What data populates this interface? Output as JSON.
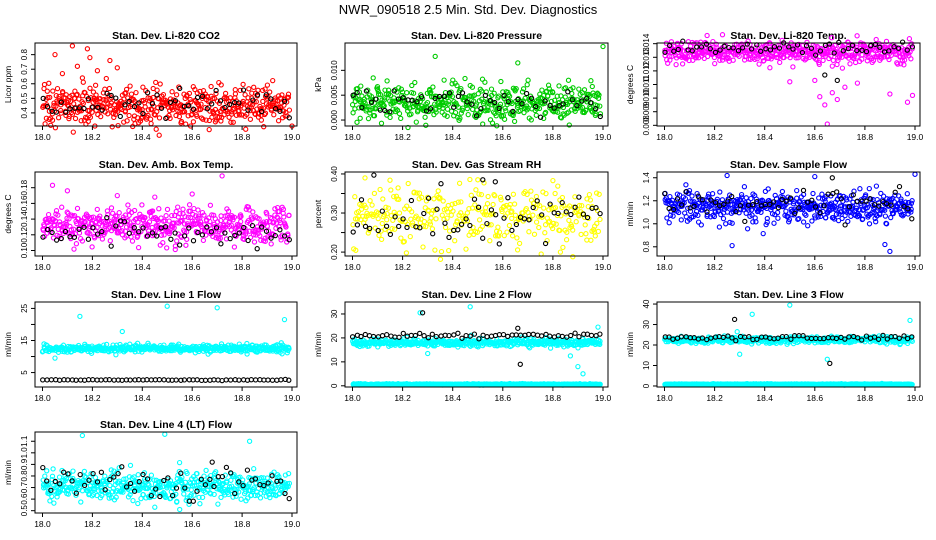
{
  "page_title": "NWR_090518  2.5 Min. Std. Dev. Diagnostics",
  "chart_data": [
    {
      "type": "scatter",
      "title": "Stan. Dev. Li-820 CO2",
      "ylabel": "Licor ppm",
      "xlim": [
        17.97,
        19.02
      ],
      "ylim": [
        0.31,
        0.88
      ],
      "xticks": [
        18.0,
        18.2,
        18.4,
        18.6,
        18.8,
        19.0
      ],
      "xtick_labels": [
        "18.0",
        "18.2",
        "18.4",
        "18.6",
        "18.8",
        "19.0"
      ],
      "yticks": [
        0.4,
        0.5,
        0.6,
        0.7,
        0.8
      ],
      "ytick_labels": [
        "0.4",
        "0.5",
        "0.6",
        "0.7",
        "0.8"
      ],
      "series": [
        {
          "color": "#ff0000",
          "n": 480,
          "center": 0.45,
          "spread": 0.07,
          "outliers": [
            [
              18.05,
              0.8
            ],
            [
              18.12,
              0.86
            ],
            [
              18.14,
              0.72
            ],
            [
              18.18,
              0.84
            ],
            [
              18.19,
              0.78
            ],
            [
              18.22,
              0.69
            ],
            [
              18.27,
              0.76
            ],
            [
              18.08,
              0.67
            ],
            [
              18.16,
              0.64
            ],
            [
              18.3,
              0.71
            ],
            [
              18.21,
              0.31
            ],
            [
              19.0,
              0.31
            ]
          ]
        },
        {
          "color": "#000000",
          "n": 55,
          "center": 0.46,
          "spread": 0.05,
          "outliers": []
        }
      ]
    },
    {
      "type": "scatter",
      "title": "Stan. Dev. Li-820 Pressure",
      "ylabel": "kPa",
      "xlim": [
        17.97,
        19.02
      ],
      "ylim": [
        -0.0012,
        0.0155
      ],
      "xticks": [
        18.0,
        18.2,
        18.4,
        18.6,
        18.8,
        19.0
      ],
      "xtick_labels": [
        "18.0",
        "18.2",
        "18.4",
        "18.6",
        "18.8",
        "19.0"
      ],
      "yticks": [
        0.0,
        0.005,
        0.01
      ],
      "ytick_labels": [
        "0.000",
        "0.005",
        "0.010"
      ],
      "series": [
        {
          "color": "#00cc00",
          "n": 480,
          "center": 0.0035,
          "spread": 0.0018,
          "outliers": [
            [
              18.33,
              0.0128
            ],
            [
              18.66,
              0.0115
            ],
            [
              19.0,
              0.0148
            ]
          ]
        },
        {
          "color": "#000000",
          "n": 55,
          "center": 0.0033,
          "spread": 0.0015,
          "outliers": []
        }
      ]
    },
    {
      "type": "scatter",
      "title": "Stan. Dev. Li-820 Temp.",
      "ylabel": "degrees C",
      "xlim": [
        17.97,
        19.02
      ],
      "ylim": [
        0.00795,
        0.01405
      ],
      "xticks": [
        18.0,
        18.2,
        18.4,
        18.6,
        18.8,
        19.0
      ],
      "xtick_labels": [
        "18.0",
        "18.2",
        "18.4",
        "18.6",
        "18.8",
        "19.0"
      ],
      "yticks": [
        0.008,
        0.009,
        0.01,
        0.011,
        0.012,
        0.013,
        0.014
      ],
      "ytick_labels": [
        "0.008",
        "0.009",
        "0.010",
        "0.011",
        "0.012",
        "0.013",
        "0.014"
      ],
      "series": [
        {
          "color": "#ff00ff",
          "n": 480,
          "center": 0.0134,
          "spread": 0.0004,
          "outliers": [
            [
              18.62,
              0.0101
            ],
            [
              18.64,
              0.0095
            ],
            [
              18.67,
              0.0104
            ],
            [
              18.69,
              0.0099
            ],
            [
              18.72,
              0.0108
            ],
            [
              18.9,
              0.0103
            ],
            [
              18.97,
              0.0097
            ],
            [
              18.99,
              0.0102
            ],
            [
              18.5,
              0.0112
            ],
            [
              18.77,
              0.0111
            ],
            [
              18.65,
              0.0081
            ],
            [
              18.6,
              0.0113
            ]
          ]
        },
        {
          "color": "#000000",
          "n": 55,
          "center": 0.0137,
          "spread": 0.0002,
          "outliers": [
            [
              18.64,
              0.0117
            ],
            [
              18.69,
              0.0113
            ]
          ]
        }
      ]
    },
    {
      "type": "scatter",
      "title": "Stan. Dev. Amb. Box Temp.",
      "ylabel": "degrees C",
      "xlim": [
        17.97,
        19.02
      ],
      "ylim": [
        0.093,
        0.2
      ],
      "xticks": [
        18.0,
        18.2,
        18.4,
        18.6,
        18.8,
        19.0
      ],
      "xtick_labels": [
        "18.0",
        "18.2",
        "18.4",
        "18.6",
        "18.8",
        "19.0"
      ],
      "yticks": [
        0.1,
        0.12,
        0.14,
        0.16,
        0.18
      ],
      "ytick_labels": [
        "0.10",
        "0.12",
        "0.14",
        "0.16",
        "0.18"
      ],
      "series": [
        {
          "color": "#ff00ff",
          "n": 480,
          "center": 0.132,
          "spread": 0.012,
          "outliers": [
            [
              18.04,
              0.183
            ],
            [
              18.1,
              0.176
            ],
            [
              18.3,
              0.17
            ],
            [
              18.72,
              0.195
            ],
            [
              18.45,
              0.168
            ],
            [
              18.6,
              0.172
            ]
          ]
        },
        {
          "color": "#000000",
          "n": 55,
          "center": 0.123,
          "spread": 0.008,
          "outliers": []
        }
      ]
    },
    {
      "type": "scatter",
      "title": "Stan. Dev. Gas Stream RH",
      "ylabel": "percent",
      "xlim": [
        17.97,
        19.02
      ],
      "ylim": [
        0.19,
        0.405
      ],
      "xticks": [
        18.0,
        18.2,
        18.4,
        18.6,
        18.8,
        19.0
      ],
      "xtick_labels": [
        "18.0",
        "18.2",
        "18.4",
        "18.6",
        "18.8",
        "19.0"
      ],
      "yticks": [
        0.2,
        0.25,
        0.3,
        0.35,
        0.4
      ],
      "ytick_labels": [
        "0.20",
        "",
        "0.30",
        "",
        "0.40"
      ],
      "series": [
        {
          "color": "#ffff00",
          "n": 330,
          "center": 0.292,
          "spread": 0.035,
          "outliers": [
            [
              18.05,
              0.39
            ],
            [
              18.5,
              0.385
            ],
            [
              18.8,
              0.383
            ],
            [
              18.83,
              0.2
            ]
          ]
        },
        {
          "color": "#000000",
          "n": 60,
          "center": 0.285,
          "spread": 0.035,
          "outliers": [
            [
              18.52,
              0.385
            ],
            [
              18.57,
              0.38
            ]
          ]
        }
      ]
    },
    {
      "type": "scatter",
      "title": "Stan. Dev. Sample Flow",
      "ylabel": "ml/min",
      "xlim": [
        17.97,
        19.02
      ],
      "ylim": [
        0.72,
        1.45
      ],
      "xticks": [
        18.0,
        18.2,
        18.4,
        18.6,
        18.8,
        19.0
      ],
      "xtick_labels": [
        "18.0",
        "18.2",
        "18.4",
        "18.6",
        "18.8",
        "19.0"
      ],
      "yticks": [
        0.8,
        1.0,
        1.2,
        1.4
      ],
      "ytick_labels": [
        "0.8",
        "1.0",
        "1.2",
        "1.4"
      ],
      "series": [
        {
          "color": "#0000ff",
          "n": 480,
          "center": 1.15,
          "spread": 0.07,
          "outliers": [
            [
              18.27,
              0.81
            ],
            [
              18.88,
              0.82
            ],
            [
              18.9,
              0.76
            ],
            [
              19.0,
              1.43
            ],
            [
              18.25,
              1.42
            ],
            [
              18.6,
              1.41
            ]
          ]
        },
        {
          "color": "#000000",
          "n": 60,
          "center": 1.16,
          "spread": 0.06,
          "outliers": [
            [
              18.67,
              1.4
            ]
          ]
        }
      ]
    },
    {
      "type": "scatter",
      "title": "Stan. Dev. Line 1 Flow",
      "ylabel": "ml/min",
      "xlim": [
        17.97,
        19.02
      ],
      "ylim": [
        0.5,
        27
      ],
      "xticks": [
        18.0,
        18.2,
        18.4,
        18.6,
        18.8,
        19.0
      ],
      "xtick_labels": [
        "18.0",
        "18.2",
        "18.4",
        "18.6",
        "18.8",
        "19.0"
      ],
      "yticks": [
        5,
        10,
        15,
        20,
        25
      ],
      "ytick_labels": [
        "5",
        "",
        "15",
        "",
        "25"
      ],
      "series": [
        {
          "color": "#00ffff",
          "n": 480,
          "center": 12.5,
          "spread": 0.6,
          "outliers": [
            [
              18.15,
              22.5
            ],
            [
              18.5,
              25.7
            ],
            [
              18.7,
              25.2
            ],
            [
              18.97,
              21.5
            ],
            [
              18.32,
              17.8
            ],
            [
              18.05,
              9.5
            ],
            [
              18.82,
              10.8
            ]
          ]
        },
        {
          "color": "#000000",
          "n": 60,
          "center": 2.7,
          "spread": 0.08,
          "outliers": []
        }
      ]
    },
    {
      "type": "scatter",
      "title": "Stan. Dev. Line 2 Flow",
      "ylabel": "ml/min",
      "xlim": [
        17.97,
        19.02
      ],
      "ylim": [
        -0.5,
        35
      ],
      "xticks": [
        18.0,
        18.2,
        18.4,
        18.6,
        18.8,
        19.0
      ],
      "xtick_labels": [
        "18.0",
        "18.2",
        "18.4",
        "18.6",
        "18.8",
        "19.0"
      ],
      "yticks": [
        0,
        10,
        20,
        30
      ],
      "ytick_labels": [
        "0",
        "10",
        "20",
        "30"
      ],
      "series": [
        {
          "color": "#00ffff",
          "n": 480,
          "center": 18.0,
          "spread": 0.8,
          "outliers": [
            [
              18.3,
              13.5
            ],
            [
              18.87,
              12.5
            ],
            [
              18.9,
              8.0
            ],
            [
              18.92,
              5.0
            ],
            [
              18.98,
              24.5
            ],
            [
              18.47,
              33.0
            ],
            [
              18.27,
              30.5
            ]
          ]
        },
        {
          "color": "#00ffff",
          "n": 480,
          "center": 0.6,
          "spread": 0.12,
          "outliers": []
        },
        {
          "color": "#000000",
          "n": 60,
          "center": 21.0,
          "spread": 0.5,
          "outliers": [
            [
              18.28,
              30.5
            ],
            [
              18.66,
              24.0
            ],
            [
              18.67,
              9.0
            ]
          ]
        }
      ]
    },
    {
      "type": "scatter",
      "title": "Stan. Dev. Line 3 Flow",
      "ylabel": "ml/min",
      "xlim": [
        17.97,
        19.02
      ],
      "ylim": [
        -0.5,
        41
      ],
      "xticks": [
        18.0,
        18.2,
        18.4,
        18.6,
        18.8,
        19.0
      ],
      "xtick_labels": [
        "18.0",
        "18.2",
        "18.4",
        "18.6",
        "18.8",
        "19.0"
      ],
      "yticks": [
        0,
        10,
        20,
        30,
        40
      ],
      "ytick_labels": [
        "0",
        "10",
        "20",
        "30",
        "40"
      ],
      "series": [
        {
          "color": "#00ffff",
          "n": 480,
          "center": 22.5,
          "spread": 0.8,
          "outliers": [
            [
              18.29,
              26.5
            ],
            [
              18.3,
              15.5
            ],
            [
              18.98,
              32.0
            ],
            [
              18.5,
              39.5
            ],
            [
              18.35,
              35.0
            ],
            [
              18.65,
              13.0
            ]
          ]
        },
        {
          "color": "#00ffff",
          "n": 480,
          "center": 0.8,
          "spread": 0.12,
          "outliers": []
        },
        {
          "color": "#000000",
          "n": 60,
          "center": 23.5,
          "spread": 0.6,
          "outliers": [
            [
              18.28,
              32.5
            ],
            [
              18.66,
              11.0
            ]
          ]
        }
      ]
    },
    {
      "type": "scatter",
      "title": "Stan. Dev. Line 4 (LT) Flow",
      "ylabel": "ml/min",
      "xlim": [
        17.97,
        19.02
      ],
      "ylim": [
        0.48,
        1.18
      ],
      "xticks": [
        18.0,
        18.2,
        18.4,
        18.6,
        18.8,
        19.0
      ],
      "xtick_labels": [
        "18.0",
        "18.2",
        "18.4",
        "18.6",
        "18.8",
        "19.0"
      ],
      "yticks": [
        0.5,
        0.6,
        0.7,
        0.8,
        0.9,
        1.0,
        1.1
      ],
      "ytick_labels": [
        "0.5",
        "0.6",
        "0.7",
        "0.8",
        "0.9",
        "1.0",
        "1.1"
      ],
      "series": [
        {
          "color": "#00ffff",
          "n": 480,
          "center": 0.71,
          "spread": 0.06,
          "outliers": [
            [
              18.16,
              1.15
            ],
            [
              18.49,
              1.16
            ],
            [
              18.83,
              1.1
            ],
            [
              18.45,
              0.53
            ],
            [
              18.55,
              0.51
            ]
          ]
        },
        {
          "color": "#000000",
          "n": 60,
          "center": 0.72,
          "spread": 0.07,
          "outliers": [
            [
              18.68,
              0.92
            ]
          ]
        }
      ]
    }
  ]
}
